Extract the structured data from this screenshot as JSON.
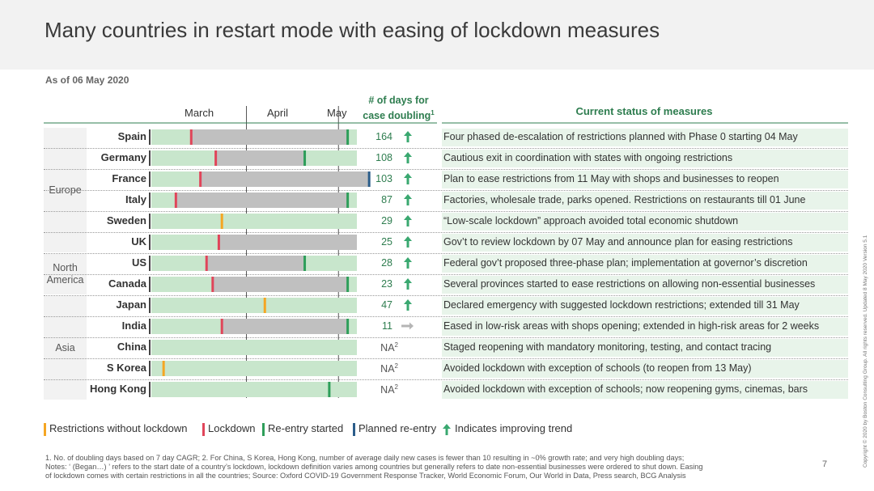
{
  "title": "Many countries in restart mode with easing of lockdown measures",
  "as_of": "As of 06 May 2020",
  "months": [
    "March",
    "April",
    "May"
  ],
  "days_header": "# of days for case doubling",
  "days_header_sup": "1",
  "status_header": "Current status of measures",
  "colors": {
    "reentry_bg": "#c8e6cc",
    "lockdown_gray": "#c0c0c0",
    "restrictions": "#f5a623",
    "lockdown": "#e0455a",
    "reentry": "#2e9e5a",
    "planned": "#2b5d8a",
    "accent_green": "#2e7d4f"
  },
  "regions": [
    {
      "name": "Europe",
      "start": 0,
      "count": 6
    },
    {
      "name": "North America",
      "start": 6,
      "count": 2
    },
    {
      "name": "Asia",
      "start": 8,
      "count": 5
    }
  ],
  "chart_data": {
    "type": "table",
    "rows": [
      {
        "country": "Spain",
        "region": "Europe",
        "restrictions": null,
        "lockdown": "2020-03-14",
        "reentry": "2020-05-04",
        "planned": null,
        "days": "164",
        "trend": "improving",
        "status": "Four phased de-escalation of restrictions planned with Phase 0 starting 04 May"
      },
      {
        "country": "Germany",
        "region": "Europe",
        "restrictions": null,
        "lockdown": "2020-03-22",
        "reentry": "2020-04-20",
        "planned": null,
        "days": "108",
        "trend": "improving",
        "status": "Cautious exit in coordination with states with ongoing restrictions"
      },
      {
        "country": "France",
        "region": "Europe",
        "restrictions": null,
        "lockdown": "2020-03-17",
        "reentry": null,
        "planned": "2020-05-11",
        "days": "103",
        "trend": "improving",
        "status": "Plan to ease restrictions from 11 May with shops and businesses to reopen"
      },
      {
        "country": "Italy",
        "region": "Europe",
        "restrictions": null,
        "lockdown": "2020-03-09",
        "reentry": "2020-05-04",
        "planned": null,
        "days": "87",
        "trend": "improving",
        "status": "Factories, wholesale trade, parks opened. Restrictions on restaurants till 01 June"
      },
      {
        "country": "Sweden",
        "region": "Europe",
        "restrictions": "2020-03-24",
        "lockdown": null,
        "reentry": null,
        "planned": null,
        "days": "29",
        "trend": "improving",
        "status": "“Low-scale lockdown” approach avoided total economic shutdown"
      },
      {
        "country": "UK",
        "region": "Europe",
        "restrictions": null,
        "lockdown": "2020-03-23",
        "reentry": null,
        "planned": null,
        "days": "25",
        "trend": "improving",
        "status": "Gov’t to review lockdown by 07 May and announce plan for easing restrictions"
      },
      {
        "country": "US",
        "region": "North America",
        "restrictions": null,
        "lockdown": "2020-03-19",
        "reentry": "2020-04-20",
        "planned": null,
        "days": "28",
        "trend": "improving",
        "status": "Federal gov’t proposed three-phase plan; implementation at governor’s discretion"
      },
      {
        "country": "Canada",
        "region": "North America",
        "restrictions": null,
        "lockdown": "2020-03-21",
        "reentry": "2020-05-04",
        "planned": null,
        "days": "23",
        "trend": "improving",
        "status": "Several provinces started to ease restrictions on allowing non-essential businesses"
      },
      {
        "country": "Japan",
        "region": "Asia",
        "restrictions": "2020-04-07",
        "lockdown": null,
        "reentry": null,
        "planned": null,
        "days": "47",
        "trend": "improving",
        "status": "Declared emergency with suggested lockdown restrictions; extended till 31 May"
      },
      {
        "country": "India",
        "region": "Asia",
        "restrictions": null,
        "lockdown": "2020-03-24",
        "reentry": "2020-05-04",
        "planned": null,
        "days": "11",
        "trend": "flat",
        "status": "Eased in low-risk areas with shops opening; extended in high-risk areas for 2 weeks"
      },
      {
        "country": "China",
        "region": "Asia",
        "restrictions": null,
        "lockdown": null,
        "reentry": null,
        "planned": null,
        "days": "NA",
        "days_sup": "2",
        "trend": "none",
        "status": "Staged reopening with mandatory monitoring, testing, and contact tracing"
      },
      {
        "country": "S Korea",
        "region": "Asia",
        "restrictions": "2020-03-05",
        "lockdown": null,
        "reentry": null,
        "planned": null,
        "days": "NA",
        "days_sup": "2",
        "trend": "none",
        "status": "Avoided lockdown with exception of schools (to reopen from 13 May)"
      },
      {
        "country": "Hong Kong",
        "region": "Asia",
        "restrictions": null,
        "lockdown": null,
        "reentry": "2020-04-28",
        "planned": null,
        "days": "NA",
        "days_sup": "2",
        "trend": "none",
        "status": "Avoided lockdown with exception of schools; now reopening gyms, cinemas, bars"
      }
    ]
  },
  "legend": {
    "restrictions": "Restrictions without lockdown",
    "lockdown": "Lockdown",
    "reentry": "Re-entry started",
    "planned": "Planned re-entry",
    "trend": "Indicates improving trend"
  },
  "footnote_line1": "1. No. of doubling days based on 7 day CAGR; 2. For China, S Korea, Hong Kong, number of average daily new cases is fewer than 10 resulting in ~0% growth rate; and very high doubling days;",
  "footnote_line2": "Notes: ‘ (Began…) ’ refers to the start date of a country’s lockdown, lockdown definition varies among countries but generally refers to date non-essential businesses were ordered to shut down. Easing",
  "footnote_line3": "of lockdown comes with certain restrictions in all the countries; Source: Oxford COVID-19 Government Response Tracker, World Economic Forum, Our World in Data, Press search, BCG Analysis",
  "page_number": "7",
  "copyright": "Copyright © 2020 by Boston Consulting Group. All rights reserved.  Updated 8 May 2020 Version 5.1"
}
